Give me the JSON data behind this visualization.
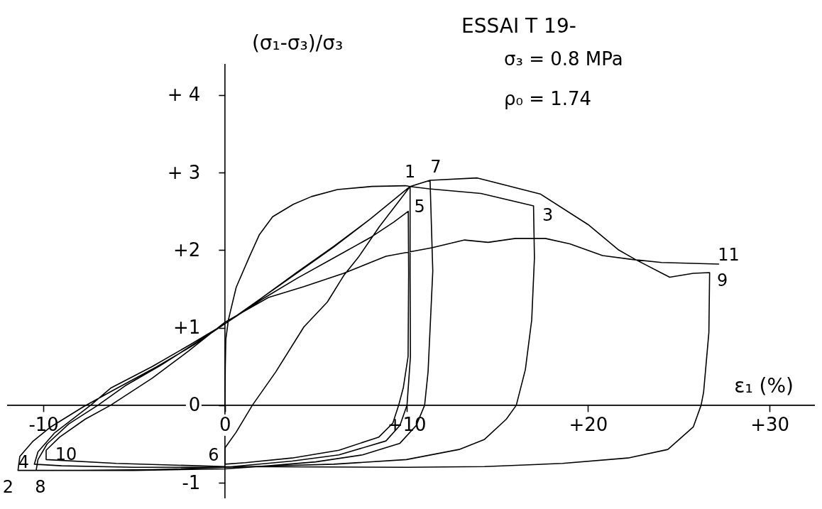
{
  "chart_data": {
    "type": "line",
    "title": "ESSAI T 19-",
    "xlabel": "ε₁ (%)",
    "ylabel": "(σ₁-σ₃)/σ₃",
    "xlim": [
      -12,
      32.5
    ],
    "ylim": [
      -1.2,
      4.4
    ],
    "xticks": [
      -10,
      0,
      {
        "value": 10,
        "label": "+10"
      },
      {
        "value": 20,
        "label": "+20"
      },
      {
        "value": 30,
        "label": "+30"
      }
    ],
    "yticks": [
      {
        "value": 4,
        "label": "+ 4"
      },
      {
        "value": 3,
        "label": "+ 3"
      },
      {
        "value": 2,
        "label": "+2"
      },
      {
        "value": 1,
        "label": "+1"
      },
      0,
      -1
    ],
    "annotations": [
      "σ₃ = 0.8 MPa",
      "ρ₀ = 1.74",
      {
        "text": "1",
        "x": 10.2,
        "y": 2.82
      },
      {
        "text": "2",
        "x": -11.4,
        "y": -0.84
      },
      {
        "text": "3",
        "x": 17.0,
        "y": 2.57
      },
      {
        "text": "4",
        "x": -10.5,
        "y": -0.76
      },
      {
        "text": "5",
        "x": 10.1,
        "y": 2.5
      },
      {
        "text": "6",
        "x": 0,
        "y": -0.76
      },
      {
        "text": "7",
        "x": 11.3,
        "y": 2.9
      },
      {
        "text": "8",
        "x": -10.4,
        "y": -0.84
      },
      {
        "text": "9",
        "x": 26.7,
        "y": 1.71
      },
      {
        "text": "10",
        "x": -9.85,
        "y": -0.7
      },
      {
        "text": "11",
        "x": 27.2,
        "y": 1.82
      }
    ],
    "series": [
      {
        "color": "#000000",
        "x": [
          0,
          0.02,
          0.05,
          0.19,
          0.62,
          1.34,
          1.9,
          2.63,
          3.77,
          4.77,
          6.2,
          8.08,
          9.94,
          10.2,
          10.2,
          10.22,
          10.03,
          9.64,
          8.87,
          6.28,
          3.7,
          0,
          -4,
          -8,
          -11.4,
          -11.3,
          -10.6,
          -9.6,
          -7.8,
          -6.1,
          -3.8,
          -1.7,
          0,
          2,
          4,
          6,
          8,
          10.2,
          11.25,
          14.1,
          17.0,
          17.05,
          16.9,
          16.55,
          16.05,
          15.5,
          14.3,
          12.9,
          10,
          6,
          0,
          -5,
          -9,
          -10.5,
          -10.3,
          -9.4,
          -7.4,
          -6.3,
          -4,
          -2,
          0,
          2,
          4,
          6,
          8,
          9.3,
          10.1,
          10.12,
          10.09,
          9.83,
          9.57,
          9.25,
          8.48,
          6.28,
          3.7,
          1.12,
          0,
          0,
          0.61,
          1.51,
          2.8,
          4.35,
          5.64,
          6.54,
          7.36,
          8.5,
          9.65,
          10.2,
          11.3,
          11.45,
          11.19,
          11.0,
          10.54,
          9.64,
          7.58,
          5.0,
          2.41,
          0,
          -5,
          -9,
          -10.4,
          -10.3,
          -9.8,
          -8.6,
          -7.0,
          -5.5,
          -3.5,
          -1.7,
          0,
          2,
          4,
          6,
          8,
          10.2,
          11.3,
          13.9,
          17.4,
          20.0,
          21.7,
          22.6,
          24.5,
          25.8,
          26.7,
          26.66,
          26.37,
          26.23,
          25.8,
          24.4,
          22.2,
          18.6,
          14.3,
          10,
          0,
          -6,
          -9.85,
          -9.85,
          -9.1,
          -7.7,
          -6.3,
          -4,
          -2,
          0,
          2.4,
          4.35,
          6.54,
          8.87,
          11.4,
          13.2,
          14.5,
          16.0,
          17.65,
          19.0,
          20.8,
          22.4,
          24.05,
          27.2
        ],
        "values": [
          0,
          0.5,
          0.85,
          1.1,
          1.52,
          1.91,
          2.2,
          2.43,
          2.59,
          2.69,
          2.78,
          2.82,
          2.83,
          2.82,
          1.7,
          0.63,
          0,
          -0.26,
          -0.46,
          -0.64,
          -0.72,
          -0.8,
          -0.83,
          -0.84,
          -0.84,
          -0.66,
          -0.47,
          -0.28,
          -0.02,
          0.2,
          0.49,
          0.78,
          1.05,
          1.38,
          1.72,
          2.05,
          2.4,
          2.82,
          2.79,
          2.73,
          2.57,
          1.9,
          1.1,
          0.46,
          0,
          -0.18,
          -0.44,
          -0.57,
          -0.7,
          -0.76,
          -0.8,
          -0.8,
          -0.78,
          -0.76,
          -0.6,
          -0.36,
          0,
          0.22,
          0.5,
          0.77,
          1.05,
          1.36,
          1.64,
          1.9,
          2.16,
          2.36,
          2.5,
          1.7,
          0.63,
          0.23,
          0,
          -0.23,
          -0.41,
          -0.58,
          -0.68,
          -0.74,
          -0.76,
          -0.55,
          -0.35,
          0,
          0.43,
          1.01,
          1.33,
          1.67,
          1.91,
          2.3,
          2.65,
          2.82,
          2.9,
          1.73,
          0.43,
          0,
          -0.26,
          -0.49,
          -0.64,
          -0.73,
          -0.78,
          -0.82,
          -0.84,
          -0.84,
          -0.84,
          -0.7,
          -0.5,
          -0.24,
          0,
          0.25,
          0.52,
          0.79,
          1.05,
          1.38,
          1.71,
          2.04,
          2.4,
          2.82,
          2.9,
          2.93,
          2.72,
          2.33,
          2.0,
          1.88,
          1.65,
          1.7,
          1.71,
          0.94,
          0.17,
          0,
          -0.28,
          -0.57,
          -0.68,
          -0.75,
          -0.79,
          -0.8,
          -0.79,
          -0.75,
          -0.7,
          -0.58,
          -0.41,
          -0.18,
          0,
          0.35,
          0.7,
          1.07,
          1.39,
          1.53,
          1.7,
          1.92,
          2.03,
          2.13,
          2.1,
          2.15,
          2.15,
          2.08,
          1.93,
          1.88,
          1.84,
          1.82
        ]
      }
    ]
  }
}
